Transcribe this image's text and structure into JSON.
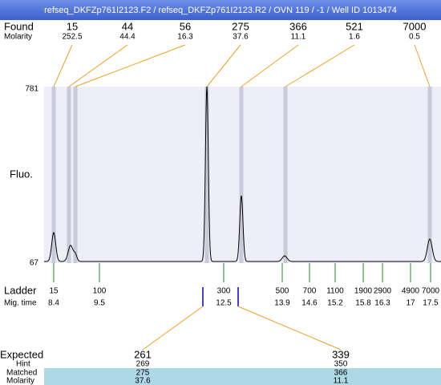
{
  "header": {
    "title": "refseq_DKFZp761I2123.F2 / refseq_DKFZp761I2123.R2 / OVN 119 / -1 / Well ID 1013474"
  },
  "found": {
    "label": "Found",
    "sizes": [
      15,
      44,
      56,
      275,
      366,
      521,
      7000
    ],
    "molarity_label": "Molarity",
    "molarity": [
      252.5,
      44.4,
      16.3,
      37.6,
      11.1,
      1.6,
      0.5
    ]
  },
  "plot": {
    "y_axis_label": "Fluo.",
    "y_max": 781,
    "y_min": 67
  },
  "ladder": {
    "label": "Ladder",
    "mig_label": "Mig. time",
    "sizes": [
      15,
      100,
      300,
      500,
      700,
      1100,
      1900,
      2900,
      4900,
      7000
    ],
    "mig_times": [
      8.4,
      9.5,
      12.5,
      13.9,
      14.6,
      15.2,
      15.8,
      16.3,
      17,
      17.5
    ]
  },
  "expected": {
    "label": "Expected",
    "values": [
      261,
      339
    ],
    "hint_label": "Hint",
    "hint": [
      269,
      350
    ],
    "matched_label": "Matched",
    "matched": [
      275,
      366
    ],
    "molarity_label": "Molarity",
    "molarity": [
      37.6,
      11.1
    ]
  }
}
